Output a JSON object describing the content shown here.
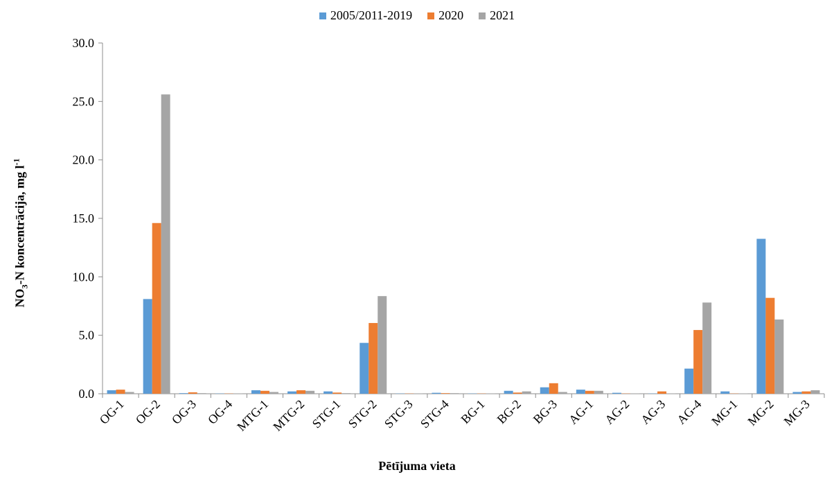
{
  "chart_data": {
    "type": "bar",
    "title": "",
    "xlabel": "Pētījuma vieta",
    "ylabel_parts": {
      "main": "NO",
      "sub": "3",
      "rest": "-N koncentrācija,  mg l",
      "sup": "-1"
    },
    "ylim": [
      0,
      30
    ],
    "yticks": [
      "0.0",
      "5.0",
      "10.0",
      "15.0",
      "20.0",
      "25.0",
      "30.0"
    ],
    "grid": false,
    "legend_position": "top-center",
    "categories": [
      "OG-1",
      "OG-2",
      "OG-3",
      "OG-4",
      "MTG-1",
      "MTG-2",
      "STG-1",
      "STG-2",
      "STG-3",
      "STG-4",
      "BG-1",
      "BG-2",
      "BG-3",
      "AG-1",
      "AG-2",
      "AG-3",
      "AG-4",
      "MG-1",
      "MG-2",
      "MG-3"
    ],
    "series": [
      {
        "name": "2005/2011-2019",
        "color": "#5B9BD5",
        "values": [
          0.3,
          8.1,
          0.05,
          0.02,
          0.3,
          0.2,
          0.2,
          4.35,
          0.02,
          0.08,
          0.02,
          0.25,
          0.55,
          0.35,
          0.08,
          0.02,
          2.15,
          0.2,
          13.25,
          0.15
        ]
      },
      {
        "name": "2020",
        "color": "#ED7D31",
        "values": [
          0.35,
          14.6,
          0.12,
          0.02,
          0.25,
          0.3,
          0.1,
          6.05,
          0.02,
          0.05,
          0.02,
          0.1,
          0.9,
          0.25,
          0.02,
          0.2,
          5.45,
          0.02,
          8.2,
          0.2
        ]
      },
      {
        "name": "2021",
        "color": "#A5A5A5",
        "values": [
          0.15,
          25.6,
          0.05,
          0.02,
          0.15,
          0.25,
          0.05,
          8.35,
          0.02,
          0.05,
          0.02,
          0.2,
          0.15,
          0.25,
          0.02,
          0.02,
          7.8,
          0.02,
          6.35,
          0.3
        ]
      }
    ]
  },
  "axis_color": "#8c8c8c"
}
